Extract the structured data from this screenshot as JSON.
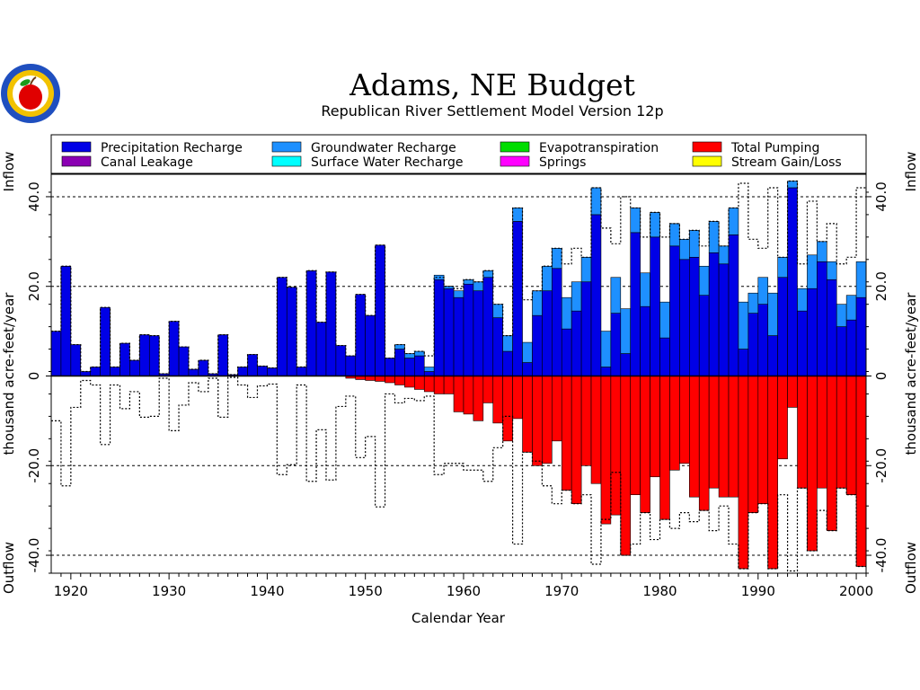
{
  "colors": {
    "precip": "#0000e6",
    "gw": "#1e90ff",
    "et": "#00dd00",
    "pump": "#ff0000",
    "canal": "#8b00b3",
    "sw": "#00ffff",
    "springs": "#ff00ff",
    "stream": "#ffff00"
  },
  "logo_icon": "apple-seal-icon",
  "chart_data": {
    "type": "bar",
    "title": "Adams, NE Budget",
    "subtitle": "Republican River Settlement Model Version 12p",
    "xlabel": "Calendar Year",
    "ylabel": "thousand acre-feet/year",
    "y_top_label": "Inflow",
    "y_bottom_label": "Outflow",
    "xlim": [
      1918,
      2001
    ],
    "ylim": [
      -44,
      45
    ],
    "x_ticks": [
      1920,
      1930,
      1940,
      1950,
      1960,
      1970,
      1980,
      1990,
      2000
    ],
    "y_ticks": [
      -40,
      -20,
      0,
      20,
      40
    ],
    "y_tick_labels": [
      "-40.0",
      "-20.0",
      "0",
      "20.0",
      "40.0"
    ],
    "grid": "dashed at ±20 and ±40",
    "legend_placement": "top",
    "legend": [
      {
        "label": "Precipitation Recharge",
        "color_key": "precip"
      },
      {
        "label": "Groundwater Recharge",
        "color_key": "gw"
      },
      {
        "label": "Evapotranspiration",
        "color_key": "et"
      },
      {
        "label": "Total Pumping",
        "color_key": "pump"
      },
      {
        "label": "Canal Leakage",
        "color_key": "canal"
      },
      {
        "label": "Surface Water Recharge",
        "color_key": "sw"
      },
      {
        "label": "Springs",
        "color_key": "springs"
      },
      {
        "label": "Stream Gain/Loss",
        "color_key": "stream"
      }
    ],
    "years": [
      1918,
      1919,
      1920,
      1921,
      1922,
      1923,
      1924,
      1925,
      1926,
      1927,
      1928,
      1929,
      1930,
      1931,
      1932,
      1933,
      1934,
      1935,
      1936,
      1937,
      1938,
      1939,
      1940,
      1941,
      1942,
      1943,
      1944,
      1945,
      1946,
      1947,
      1948,
      1949,
      1950,
      1951,
      1952,
      1953,
      1954,
      1955,
      1956,
      1957,
      1958,
      1959,
      1960,
      1961,
      1962,
      1963,
      1964,
      1965,
      1966,
      1967,
      1968,
      1969,
      1970,
      1971,
      1972,
      1973,
      1974,
      1975,
      1976,
      1977,
      1978,
      1979,
      1980,
      1981,
      1982,
      1983,
      1984,
      1985,
      1986,
      1987,
      1988,
      1989,
      1990,
      1991,
      1992,
      1993,
      1994,
      1995,
      1996,
      1997,
      1998,
      1999,
      2000
    ],
    "series": [
      {
        "name": "Precipitation Recharge",
        "color_key": "precip",
        "values": [
          10,
          24.5,
          7,
          1,
          2,
          15.3,
          2,
          7.3,
          3.5,
          9.2,
          9,
          0.5,
          12.2,
          6.5,
          1.5,
          3.5,
          0.5,
          9.2,
          0.3,
          2,
          4.8,
          2.2,
          1.8,
          22,
          19.8,
          2,
          23.5,
          12,
          23.2,
          6.8,
          4.5,
          18.2,
          13.5,
          29.2,
          4,
          6,
          4,
          4.5,
          1,
          21.5,
          19.5,
          17.5,
          20.5,
          19,
          22,
          13,
          5.5,
          34.5,
          3,
          13.5,
          19,
          24,
          10.5,
          14.5,
          21,
          36,
          2,
          14,
          5,
          32,
          15.5,
          31,
          8.5,
          29,
          26,
          26.5,
          18,
          27.5,
          25,
          31.5,
          6,
          14,
          16,
          9,
          22,
          42,
          14.5,
          19.5,
          25.5,
          21.5,
          11,
          12.5,
          17.5
        ]
      },
      {
        "name": "Groundwater Recharge",
        "color_key": "gw",
        "values": [
          0,
          0,
          0,
          0,
          0,
          0,
          0,
          0,
          0,
          0,
          0,
          0,
          0,
          0,
          0,
          0,
          0,
          0,
          0,
          0,
          0,
          0,
          0,
          0,
          0,
          0,
          0,
          0,
          0,
          0,
          0,
          0,
          0,
          0,
          0,
          1,
          1,
          1,
          1,
          1,
          0.5,
          1.5,
          1,
          2,
          1.5,
          3,
          3.5,
          3,
          4.5,
          5.5,
          5.5,
          4.5,
          7,
          6.5,
          5.5,
          6,
          8,
          8,
          10,
          5.5,
          7.5,
          5.5,
          8,
          5,
          4.5,
          6,
          6.5,
          7,
          4,
          6,
          10.5,
          4.5,
          6,
          9.5,
          4.5,
          1.5,
          5,
          7.5,
          4.5,
          4,
          5,
          5.5,
          8
        ]
      },
      {
        "name": "Total Pumping",
        "color_key": "pump",
        "values": [
          0,
          0,
          0,
          0,
          0,
          0,
          0,
          0,
          0,
          0,
          0,
          0,
          0,
          0,
          0,
          0,
          0,
          0,
          0,
          0,
          0,
          0,
          0,
          0,
          0,
          0,
          0,
          0,
          0,
          0,
          -0.5,
          -0.8,
          -1,
          -1.2,
          -1.5,
          -2,
          -2.5,
          -3,
          -3.5,
          -4,
          -4,
          -8,
          -8.5,
          -10,
          -6,
          -10.5,
          -14.5,
          -9.5,
          -17,
          -20,
          -19.5,
          -14.5,
          -25.5,
          -28.5,
          -20,
          -24,
          -33,
          -31,
          -40,
          -26.5,
          -30.5,
          -22.5,
          -32,
          -21,
          -19.5,
          -27,
          -30,
          -25,
          -27,
          -27,
          -43,
          -30.5,
          -28.5,
          -43,
          -18.5,
          -7,
          -25,
          -39,
          -25,
          -34.5,
          -25,
          -26.5,
          -42.5
        ]
      },
      {
        "name": "Outflow envelope",
        "color_key": "pump",
        "values": [
          -10,
          -24.5,
          -7,
          -1,
          -2,
          -15.3,
          -2,
          -7.3,
          -3.5,
          -9.2,
          -9,
          -0.5,
          -12.2,
          -6.5,
          -1.5,
          -3.5,
          -0.5,
          -9.2,
          -0.3,
          -2,
          -4.8,
          -2.2,
          -1.8,
          -22,
          -19.8,
          -2,
          -23.5,
          -12,
          -23.2,
          -6.8,
          -4.5,
          -18.2,
          -13.5,
          -29.2,
          -4,
          -6,
          -5,
          -5.5,
          -4.5,
          -22,
          -19.5,
          -19.5,
          -21,
          -21,
          -23.5,
          -16,
          -9,
          -37.5,
          -17,
          -19,
          -24.5,
          -28.5,
          -25.5,
          -28.5,
          -26.5,
          -42,
          -32,
          -21.5,
          -40,
          -37.5,
          -30.5,
          -36.5,
          -32,
          -34,
          -30.5,
          -32.5,
          -30,
          -34.5,
          -29,
          -37.5,
          -43,
          -30.5,
          -28.5,
          -43,
          -26.5,
          -43.5,
          -25,
          -39,
          -30,
          -34.5,
          -25,
          -26.5,
          -42.5
        ]
      },
      {
        "name": "Inflow envelope",
        "color_key": "precip",
        "values": [
          10,
          24.5,
          7,
          1,
          2,
          15.3,
          2,
          7.3,
          3.5,
          9.2,
          9,
          0.5,
          12.2,
          6.5,
          1.5,
          3.5,
          0.5,
          9.2,
          0.3,
          2,
          4.8,
          2.2,
          1.8,
          22,
          19.8,
          2,
          23.5,
          12,
          23.2,
          6.8,
          4.5,
          18.2,
          13.5,
          29.2,
          4,
          7,
          5,
          5.5,
          4.5,
          22,
          20,
          19.5,
          21.5,
          21,
          23.5,
          16,
          9,
          37.5,
          17,
          19,
          24.5,
          28.5,
          25,
          28.5,
          26.5,
          42,
          33,
          29.5,
          40,
          37.5,
          31,
          36.5,
          31,
          34,
          30.5,
          32.5,
          29,
          34.5,
          29,
          37.5,
          43,
          30.5,
          28.5,
          42,
          26.5,
          43.5,
          25,
          39,
          30,
          34,
          25,
          26.5,
          42
        ]
      }
    ]
  }
}
